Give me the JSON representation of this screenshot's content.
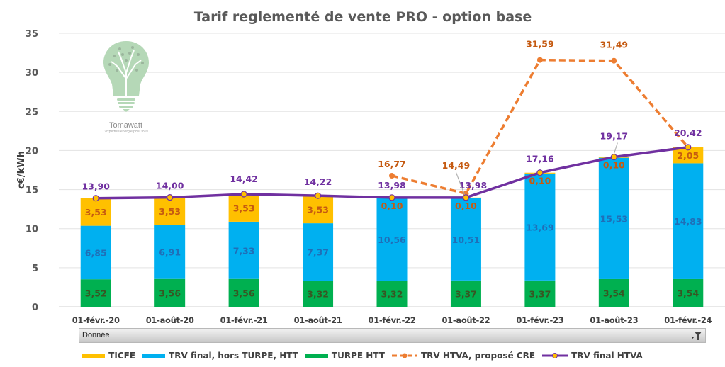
{
  "chart_data": {
    "type": "bar",
    "stacked": true,
    "title": "Tarif reglementé de vente PRO - option base",
    "xlabel": "",
    "ylabel": "c€/kWh",
    "ylim": [
      0,
      35
    ],
    "yticks": [
      "0",
      "5",
      "10",
      "15",
      "20",
      "25",
      "30",
      "35"
    ],
    "ytick_values": [
      0,
      5,
      10,
      15,
      20,
      25,
      30,
      35
    ],
    "grid": true,
    "legend_position": "bottom",
    "categories": [
      "01-févr.-20",
      "01-août-20",
      "01-févr.-21",
      "01-août-21",
      "01-févr.-22",
      "01-août-22",
      "01-févr.-23",
      "01-août-23",
      "01-févr.-24"
    ],
    "series": [
      {
        "name": "TURPE HTT",
        "kind": "bar",
        "color": "#00B050",
        "label_color": "#375623",
        "values": [
          3.52,
          3.56,
          3.56,
          3.32,
          3.32,
          3.37,
          3.37,
          3.54,
          3.54
        ],
        "labels": [
          "3,52",
          "3,56",
          "3,56",
          "3,32",
          "3,32",
          "3,37",
          "3,37",
          "3,54",
          "3,54"
        ]
      },
      {
        "name": "TRV final, hors TURPE, HTT",
        "kind": "bar",
        "color": "#00B0F0",
        "label_color": "#1F6FB8",
        "values": [
          6.85,
          6.91,
          7.33,
          7.37,
          10.56,
          10.51,
          13.69,
          15.53,
          14.83
        ],
        "labels": [
          "6,85",
          "6,91",
          "7,33",
          "7,37",
          "10,56",
          "10,51",
          "13,69",
          "15,53",
          "14,83"
        ]
      },
      {
        "name": "TICFE",
        "kind": "bar",
        "color": "#FFC000",
        "label_color": "#C55A11",
        "values": [
          3.53,
          3.53,
          3.53,
          3.53,
          0.1,
          0.1,
          0.1,
          0.1,
          2.05
        ],
        "labels": [
          "3,53",
          "3,53",
          "3,53",
          "3,53",
          "0,10",
          "0,10",
          "0,10",
          "0,10",
          "2,05"
        ]
      },
      {
        "name": "TRV HTVA, proposé CRE",
        "kind": "line",
        "style": "dashed",
        "color": "#ED7D31",
        "label_color": "#C55A11",
        "values": [
          null,
          null,
          null,
          null,
          16.77,
          14.49,
          31.59,
          31.49,
          20.42
        ],
        "labels": [
          null,
          null,
          null,
          null,
          "16,77",
          "14,49",
          "31,59",
          "31,49",
          null
        ]
      },
      {
        "name": "TRV final HTVA",
        "kind": "line",
        "style": "solid",
        "color": "#7030A0",
        "marker_color": "#FFC000",
        "label_color": "#7030A0",
        "values": [
          13.9,
          14.0,
          14.42,
          14.22,
          13.98,
          13.98,
          17.16,
          19.17,
          20.42
        ],
        "labels": [
          "13,90",
          "14,00",
          "14,42",
          "14,22",
          "13,98",
          "13,98",
          "17,16",
          "19,17",
          "20,42"
        ]
      }
    ],
    "legend_order": [
      "TICFE",
      "TRV final, hors TURPE, HTT",
      "TURPE HTT",
      "TRV HTVA, proposé CRE",
      "TRV final HTVA"
    ]
  },
  "filter_bar": {
    "field_label": "Donnée",
    "filter_icon": "filter-dropdown-icon"
  },
  "logo": {
    "brand": "Tomawatt",
    "tagline": "L'expertise énergie pour tous.",
    "icon": "lightbulb-tree-icon"
  },
  "legend": {
    "items": [
      {
        "label": "TICFE",
        "color": "#FFC000",
        "type": "box"
      },
      {
        "label": "TRV final, hors TURPE, HTT",
        "color": "#00B0F0",
        "type": "box"
      },
      {
        "label": "TURPE HTT",
        "color": "#00B050",
        "type": "box"
      },
      {
        "label": "TRV HTVA, proposé CRE",
        "color": "#ED7D31",
        "type": "dashed-line"
      },
      {
        "label": "TRV final HTVA",
        "color": "#7030A0",
        "type": "line"
      }
    ]
  }
}
